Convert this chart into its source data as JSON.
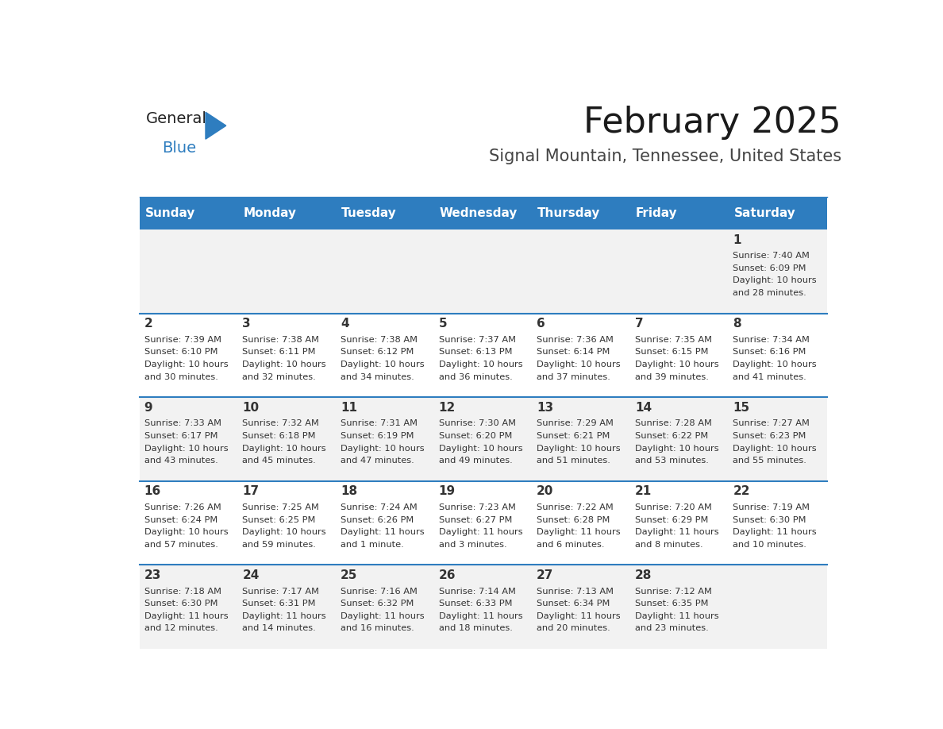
{
  "title": "February 2025",
  "subtitle": "Signal Mountain, Tennessee, United States",
  "header_color": "#2E7DBF",
  "header_text_color": "#FFFFFF",
  "days_of_week": [
    "Sunday",
    "Monday",
    "Tuesday",
    "Wednesday",
    "Thursday",
    "Friday",
    "Saturday"
  ],
  "background_color": "#FFFFFF",
  "cell_bg_even": "#F2F2F2",
  "cell_bg_odd": "#FFFFFF",
  "separator_color": "#2E7DBF",
  "text_color": "#333333",
  "num_rows": 5,
  "num_cols": 7,
  "calendar": [
    [
      null,
      null,
      null,
      null,
      null,
      null,
      {
        "day": 1,
        "sunrise": "7:40 AM",
        "sunset": "6:09 PM",
        "daylight": "10 hours and 28 minutes."
      }
    ],
    [
      {
        "day": 2,
        "sunrise": "7:39 AM",
        "sunset": "6:10 PM",
        "daylight": "10 hours and 30 minutes."
      },
      {
        "day": 3,
        "sunrise": "7:38 AM",
        "sunset": "6:11 PM",
        "daylight": "10 hours and 32 minutes."
      },
      {
        "day": 4,
        "sunrise": "7:38 AM",
        "sunset": "6:12 PM",
        "daylight": "10 hours and 34 minutes."
      },
      {
        "day": 5,
        "sunrise": "7:37 AM",
        "sunset": "6:13 PM",
        "daylight": "10 hours and 36 minutes."
      },
      {
        "day": 6,
        "sunrise": "7:36 AM",
        "sunset": "6:14 PM",
        "daylight": "10 hours and 37 minutes."
      },
      {
        "day": 7,
        "sunrise": "7:35 AM",
        "sunset": "6:15 PM",
        "daylight": "10 hours and 39 minutes."
      },
      {
        "day": 8,
        "sunrise": "7:34 AM",
        "sunset": "6:16 PM",
        "daylight": "10 hours and 41 minutes."
      }
    ],
    [
      {
        "day": 9,
        "sunrise": "7:33 AM",
        "sunset": "6:17 PM",
        "daylight": "10 hours and 43 minutes."
      },
      {
        "day": 10,
        "sunrise": "7:32 AM",
        "sunset": "6:18 PM",
        "daylight": "10 hours and 45 minutes."
      },
      {
        "day": 11,
        "sunrise": "7:31 AM",
        "sunset": "6:19 PM",
        "daylight": "10 hours and 47 minutes."
      },
      {
        "day": 12,
        "sunrise": "7:30 AM",
        "sunset": "6:20 PM",
        "daylight": "10 hours and 49 minutes."
      },
      {
        "day": 13,
        "sunrise": "7:29 AM",
        "sunset": "6:21 PM",
        "daylight": "10 hours and 51 minutes."
      },
      {
        "day": 14,
        "sunrise": "7:28 AM",
        "sunset": "6:22 PM",
        "daylight": "10 hours and 53 minutes."
      },
      {
        "day": 15,
        "sunrise": "7:27 AM",
        "sunset": "6:23 PM",
        "daylight": "10 hours and 55 minutes."
      }
    ],
    [
      {
        "day": 16,
        "sunrise": "7:26 AM",
        "sunset": "6:24 PM",
        "daylight": "10 hours and 57 minutes."
      },
      {
        "day": 17,
        "sunrise": "7:25 AM",
        "sunset": "6:25 PM",
        "daylight": "10 hours and 59 minutes."
      },
      {
        "day": 18,
        "sunrise": "7:24 AM",
        "sunset": "6:26 PM",
        "daylight": "11 hours and 1 minute."
      },
      {
        "day": 19,
        "sunrise": "7:23 AM",
        "sunset": "6:27 PM",
        "daylight": "11 hours and 3 minutes."
      },
      {
        "day": 20,
        "sunrise": "7:22 AM",
        "sunset": "6:28 PM",
        "daylight": "11 hours and 6 minutes."
      },
      {
        "day": 21,
        "sunrise": "7:20 AM",
        "sunset": "6:29 PM",
        "daylight": "11 hours and 8 minutes."
      },
      {
        "day": 22,
        "sunrise": "7:19 AM",
        "sunset": "6:30 PM",
        "daylight": "11 hours and 10 minutes."
      }
    ],
    [
      {
        "day": 23,
        "sunrise": "7:18 AM",
        "sunset": "6:30 PM",
        "daylight": "11 hours and 12 minutes."
      },
      {
        "day": 24,
        "sunrise": "7:17 AM",
        "sunset": "6:31 PM",
        "daylight": "11 hours and 14 minutes."
      },
      {
        "day": 25,
        "sunrise": "7:16 AM",
        "sunset": "6:32 PM",
        "daylight": "11 hours and 16 minutes."
      },
      {
        "day": 26,
        "sunrise": "7:14 AM",
        "sunset": "6:33 PM",
        "daylight": "11 hours and 18 minutes."
      },
      {
        "day": 27,
        "sunrise": "7:13 AM",
        "sunset": "6:34 PM",
        "daylight": "11 hours and 20 minutes."
      },
      {
        "day": 28,
        "sunrise": "7:12 AM",
        "sunset": "6:35 PM",
        "daylight": "11 hours and 23 minutes."
      },
      null
    ]
  ],
  "logo_text1": "General",
  "logo_text2": "Blue",
  "logo_color1": "#222222",
  "logo_color2": "#2E7DBF",
  "triangle_color": "#2E7DBF",
  "title_fontsize": 32,
  "subtitle_fontsize": 15,
  "header_fontsize": 11,
  "day_num_fontsize": 11,
  "cell_text_fontsize": 8.2
}
